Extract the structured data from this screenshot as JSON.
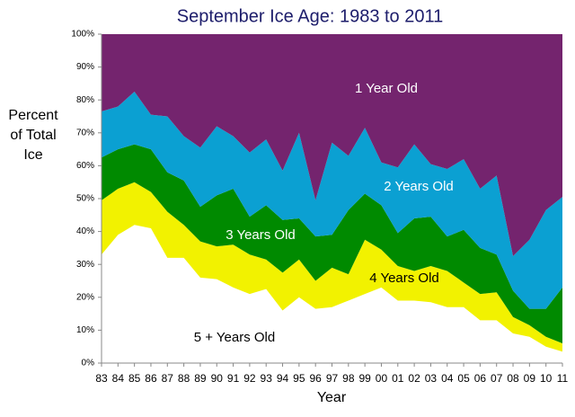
{
  "chart_data": {
    "type": "stacked-area",
    "title": "September Ice Age: 1983 to 2011",
    "x_label": "Year",
    "y_label": "Percent of Total Ice",
    "categories": [
      "83",
      "84",
      "85",
      "86",
      "87",
      "88",
      "89",
      "90",
      "91",
      "92",
      "93",
      "94",
      "95",
      "96",
      "97",
      "98",
      "99",
      "00",
      "01",
      "02",
      "03",
      "04",
      "05",
      "06",
      "07",
      "08",
      "09",
      "10",
      "11"
    ],
    "series": [
      {
        "name": "5 + Years Old",
        "color": "#ffffff",
        "values": [
          33,
          39,
          42,
          41,
          32,
          32,
          26,
          25.5,
          23,
          21,
          22.5,
          16,
          20,
          16.5,
          17,
          19,
          21,
          23,
          19,
          19,
          18.5,
          17,
          17,
          13,
          13,
          9,
          8,
          5,
          3.5
        ]
      },
      {
        "name": "4 Years Old",
        "color": "#f2f200",
        "values": [
          16.5,
          14,
          13,
          11,
          14,
          10,
          11,
          10,
          13,
          12,
          9,
          11.5,
          11.5,
          8.5,
          12,
          8,
          16.5,
          11.5,
          10.5,
          9,
          11,
          11,
          7.5,
          8,
          8.5,
          5,
          3.5,
          3,
          2.5
        ]
      },
      {
        "name": "3 Years Old",
        "color": "#008a00",
        "values": [
          13,
          12,
          11.5,
          13,
          12,
          13.5,
          10.5,
          15.5,
          17,
          11.5,
          16.5,
          16,
          12.5,
          13.5,
          10,
          19.5,
          14,
          13.5,
          10,
          16,
          15,
          10.5,
          16,
          14,
          11.5,
          8,
          5,
          8.5,
          17
        ]
      },
      {
        "name": "2 Years Old",
        "color": "#0ba0d2",
        "values": [
          14,
          13,
          16,
          10.5,
          17,
          13.5,
          18,
          21,
          16,
          19.5,
          20,
          15,
          26,
          11,
          28,
          16.5,
          20,
          13,
          20,
          22.5,
          16,
          20.5,
          21.5,
          18,
          24,
          10.5,
          21,
          30,
          27.5
        ]
      },
      {
        "name": "1 Year Old",
        "color": "#74246e",
        "values": [
          23.5,
          22,
          17.5,
          24.5,
          25,
          31,
          34.5,
          28,
          31,
          36,
          32,
          41.5,
          30,
          50.5,
          33,
          37,
          28.5,
          39,
          40.5,
          33.5,
          39.5,
          41,
          38,
          47,
          43,
          67.5,
          62.5,
          53.5,
          49.5
        ]
      }
    ],
    "ylim": [
      0,
      100
    ],
    "yticks": [
      {
        "value": 0,
        "label": "0%"
      },
      {
        "value": 10,
        "label": "10%"
      },
      {
        "value": 20,
        "label": "20%"
      },
      {
        "value": 30,
        "label": "30%"
      },
      {
        "value": 40,
        "label": "40%"
      },
      {
        "value": 50,
        "label": "50%"
      },
      {
        "value": 60,
        "label": "60%"
      },
      {
        "value": 70,
        "label": "70%"
      },
      {
        "value": 80,
        "label": "80%"
      },
      {
        "value": 90,
        "label": "90%"
      },
      {
        "value": 100,
        "label": "100%"
      }
    ],
    "grid": false
  }
}
